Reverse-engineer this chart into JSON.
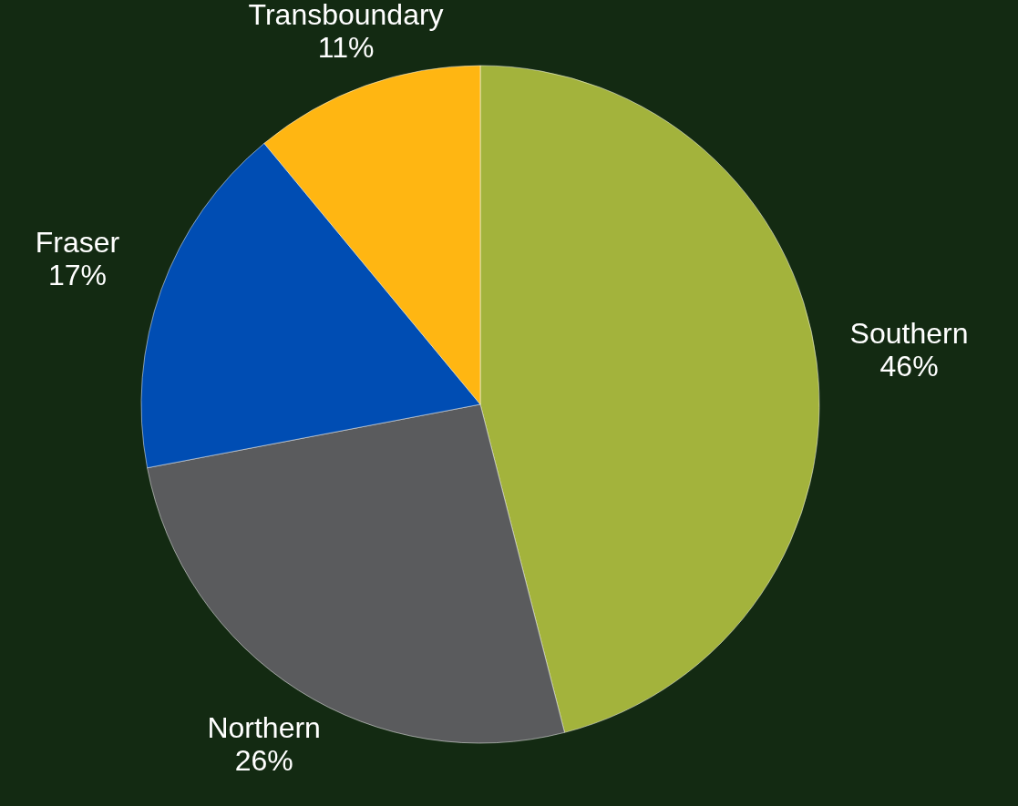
{
  "chart_data": {
    "type": "pie",
    "categories": [
      "Southern",
      "Northern",
      "Fraser",
      "Transboundary"
    ],
    "values": [
      46,
      26,
      17,
      11
    ],
    "value_labels": [
      "46%",
      "26%",
      "17%",
      "11%"
    ],
    "colors": [
      "#a3b33c",
      "#5a5b5d",
      "#004db3",
      "#ffb612"
    ],
    "legend": false
  }
}
